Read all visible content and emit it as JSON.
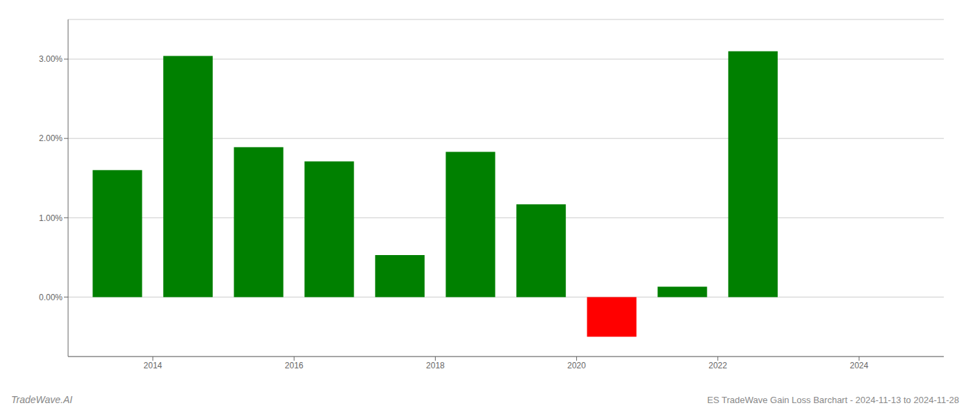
{
  "chart_data": {
    "type": "bar",
    "title": "ES TradeWave Gain Loss Barchart - 2024-11-13 to 2024-11-28",
    "annotations": [
      "TradeWave.AI"
    ],
    "x": [
      2013.5,
      2014.5,
      2015.5,
      2016.5,
      2017.5,
      2018.5,
      2019.5,
      2020.5,
      2021.5,
      2022.5
    ],
    "values": [
      1.6,
      3.04,
      1.89,
      1.71,
      0.53,
      1.83,
      1.17,
      -0.5,
      0.13,
      3.1
    ],
    "colors": [
      "#008000",
      "#008000",
      "#008000",
      "#008000",
      "#008000",
      "#008000",
      "#008000",
      "#ff0000",
      "#008000",
      "#008000"
    ],
    "xlim": [
      2012.8,
      2025.2
    ],
    "xticks": [
      2014,
      2016,
      2018,
      2020,
      2022,
      2024
    ],
    "ylim": [
      -0.75,
      3.5
    ],
    "yticks": [
      {
        "value": 0,
        "label": "0.00%"
      },
      {
        "value": 1,
        "label": "1.00%"
      },
      {
        "value": 2,
        "label": "2.00%"
      },
      {
        "value": 3,
        "label": "3.00%"
      }
    ],
    "grid": true
  }
}
